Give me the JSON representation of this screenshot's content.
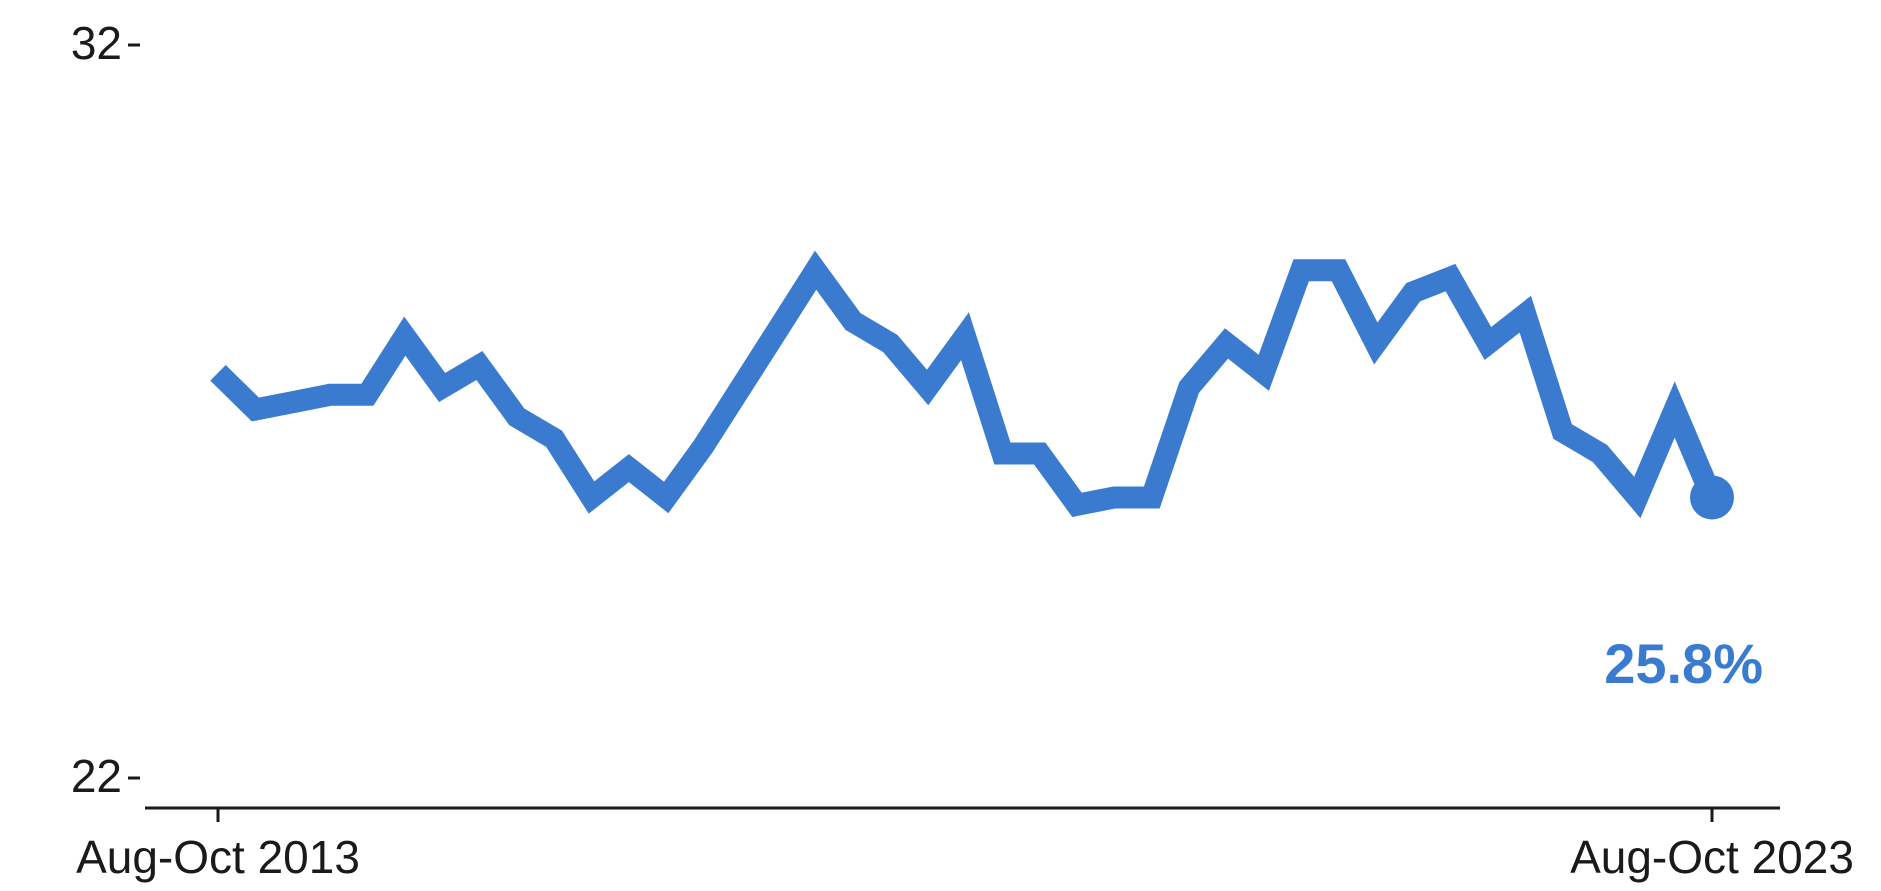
{
  "chart_data": {
    "type": "line",
    "x_start_label": "Aug-Oct 2013",
    "x_end_label": "Aug-Oct 2023",
    "ylim": [
      22,
      32
    ],
    "y_ticks": [
      "32",
      "22"
    ],
    "line_color": "#3a7bd0",
    "end_label": "25.8%",
    "series": [
      {
        "values": [
          27.5,
          27.0,
          27.1,
          27.2,
          27.2,
          28.0,
          27.3,
          27.6,
          26.9,
          26.6,
          25.8,
          26.2,
          25.8,
          26.5,
          27.3,
          28.1,
          28.9,
          28.2,
          27.9,
          27.3,
          28.0,
          26.4,
          26.4,
          25.7,
          25.8,
          25.8,
          27.3,
          27.9,
          27.5,
          28.9,
          28.9,
          27.9,
          28.6,
          28.8,
          27.9,
          28.3,
          26.7,
          26.4,
          25.8,
          27.0,
          25.8
        ]
      }
    ]
  }
}
